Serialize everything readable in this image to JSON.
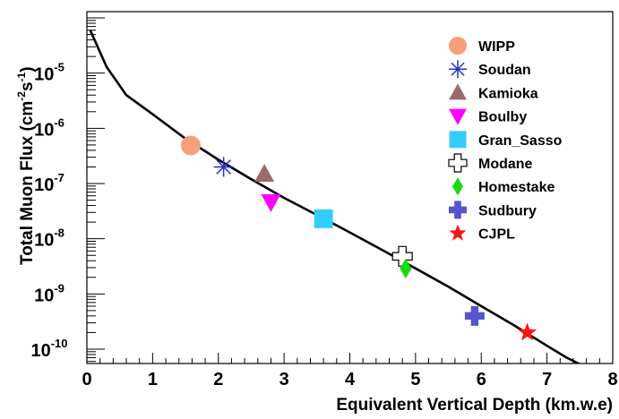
{
  "chart_data": {
    "type": "scatter",
    "xlabel": "Equivalent Vertical Depth (km.w.e)",
    "ylabel": "Total Muon Flux (cm⁻²s⁻¹)",
    "ylabel_parts": {
      "main": "Total Muon Flux (cm",
      "exp1": "-2",
      "mid": "s",
      "exp2": "-1",
      "end": ")"
    },
    "x_range": [
      0,
      8
    ],
    "y_range": [
      5.5e-11,
      0.00013
    ],
    "y_scale": "log",
    "grid": false,
    "legend_position": "top-right",
    "x_ticks": [
      "0",
      "1",
      "2",
      "3",
      "4",
      "5",
      "6",
      "7",
      "8"
    ],
    "y_ticks": [
      {
        "exp": -10,
        "label_base": "10",
        "label_exp": "-10"
      },
      {
        "exp": -9,
        "label_base": "10",
        "label_exp": "-9"
      },
      {
        "exp": -8,
        "label_base": "10",
        "label_exp": "-8"
      },
      {
        "exp": -7,
        "label_base": "10",
        "label_exp": "-7"
      },
      {
        "exp": -6,
        "label_base": "10",
        "label_exp": "-6"
      },
      {
        "exp": -5,
        "label_base": "10",
        "label_exp": "-5"
      }
    ],
    "points": [
      {
        "name": "WIPP",
        "x": 1.58,
        "y": 4.9e-07,
        "marker": "circle",
        "color": "#f5a07a"
      },
      {
        "name": "Soudan",
        "x": 2.08,
        "y": 2e-07,
        "marker": "asterisk",
        "color": "#2233cc"
      },
      {
        "name": "Kamioka",
        "x": 2.7,
        "y": 1.5e-07,
        "marker": "triangle-up",
        "color": "#9c6a6a"
      },
      {
        "name": "Boulby",
        "x": 2.8,
        "y": 4.6e-08,
        "marker": "triangle-down",
        "color": "#ff00ff"
      },
      {
        "name": "Gran_Sasso",
        "x": 3.6,
        "y": 2.3e-08,
        "marker": "square",
        "color": "#33ccff"
      },
      {
        "name": "Modane",
        "x": 4.8,
        "y": 4.8e-09,
        "marker": "open-cross",
        "color": "#000000"
      },
      {
        "name": "Homestake",
        "x": 4.85,
        "y": 2.9e-09,
        "marker": "diamond",
        "color": "#11dd11"
      },
      {
        "name": "Sudbury",
        "x": 5.9,
        "y": 4e-10,
        "marker": "cross",
        "color": "#5555cc"
      },
      {
        "name": "CJPL",
        "x": 6.7,
        "y": 2e-10,
        "marker": "star",
        "color": "#ff1111"
      }
    ],
    "fit_curve": {
      "color": "#000000",
      "points": [
        [
          0.05,
          6e-05
        ],
        [
          0.3,
          1.3e-05
        ],
        [
          0.6,
          4e-06
        ],
        [
          1.0,
          1.8e-06
        ],
        [
          1.5,
          6.5e-07
        ],
        [
          2.0,
          2.7e-07
        ],
        [
          2.5,
          1.2e-07
        ],
        [
          3.0,
          5.5e-08
        ],
        [
          3.5,
          2.7e-08
        ],
        [
          4.0,
          1.3e-08
        ],
        [
          4.5,
          6.2e-09
        ],
        [
          5.0,
          2.9e-09
        ],
        [
          5.5,
          1.35e-09
        ],
        [
          6.0,
          6e-10
        ],
        [
          6.5,
          2.7e-10
        ],
        [
          7.0,
          1.15e-10
        ],
        [
          7.3,
          7e-11
        ],
        [
          7.55,
          5e-11
        ]
      ]
    }
  }
}
